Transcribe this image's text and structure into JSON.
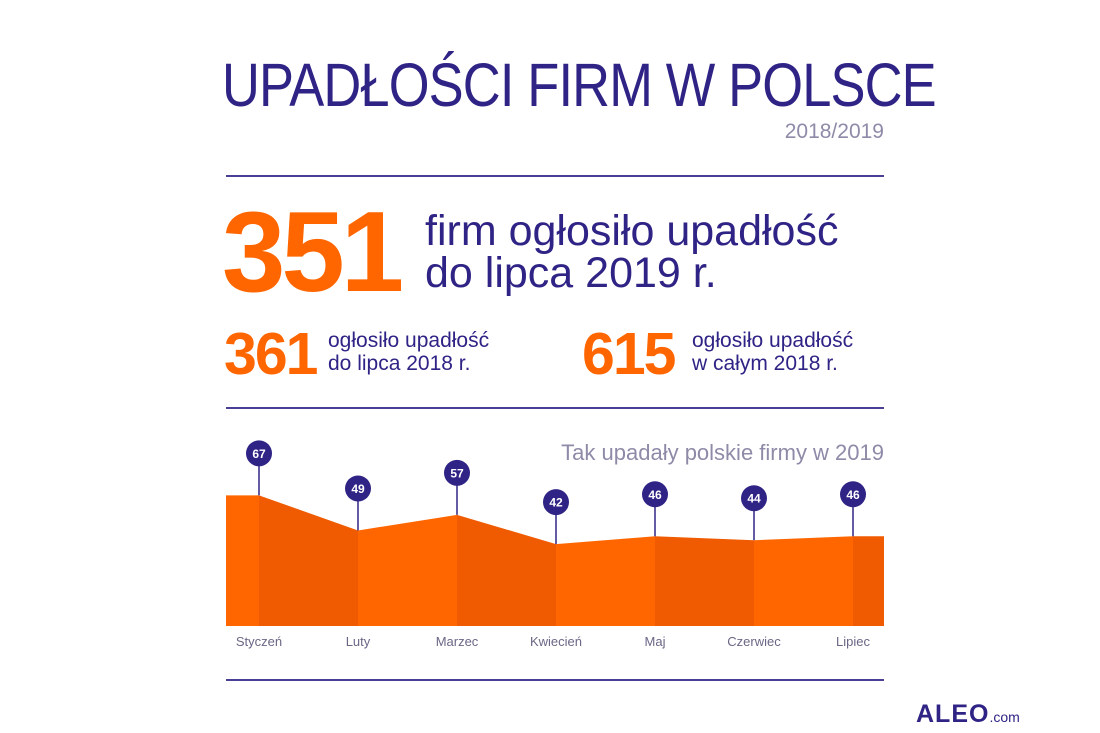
{
  "header": {
    "title": "UPADŁOŚCI FIRM W POLSCE",
    "years": "2018/2019"
  },
  "main_stat": {
    "value": "351",
    "line1": "firm ogłosiło upadłość",
    "line2": "do lipca 2019 r."
  },
  "stats": [
    {
      "value": "361",
      "line1": "ogłosiło upadłość",
      "line2": "do lipca 2018 r."
    },
    {
      "value": "615",
      "line1": "ogłosiło upadłość",
      "line2": "w całym 2018 r."
    }
  ],
  "colors": {
    "accent": "#ff6600",
    "accent_dark": "#f05a00",
    "brand": "#2f2485",
    "muted": "#8f8aa8"
  },
  "chart_data": {
    "type": "area",
    "title": "Tak upadały polskie firmy w 2019",
    "categories": [
      "Styczeń",
      "Luty",
      "Marzec",
      "Kwiecień",
      "Maj",
      "Czerwiec",
      "Lipiec"
    ],
    "values": [
      67,
      49,
      57,
      42,
      46,
      44,
      46
    ],
    "xlabel": "",
    "ylabel": "",
    "ylim": [
      0,
      67
    ],
    "grid": false,
    "data_labels": true
  },
  "logo": {
    "main": "ALEO",
    "suffix": ".com"
  }
}
